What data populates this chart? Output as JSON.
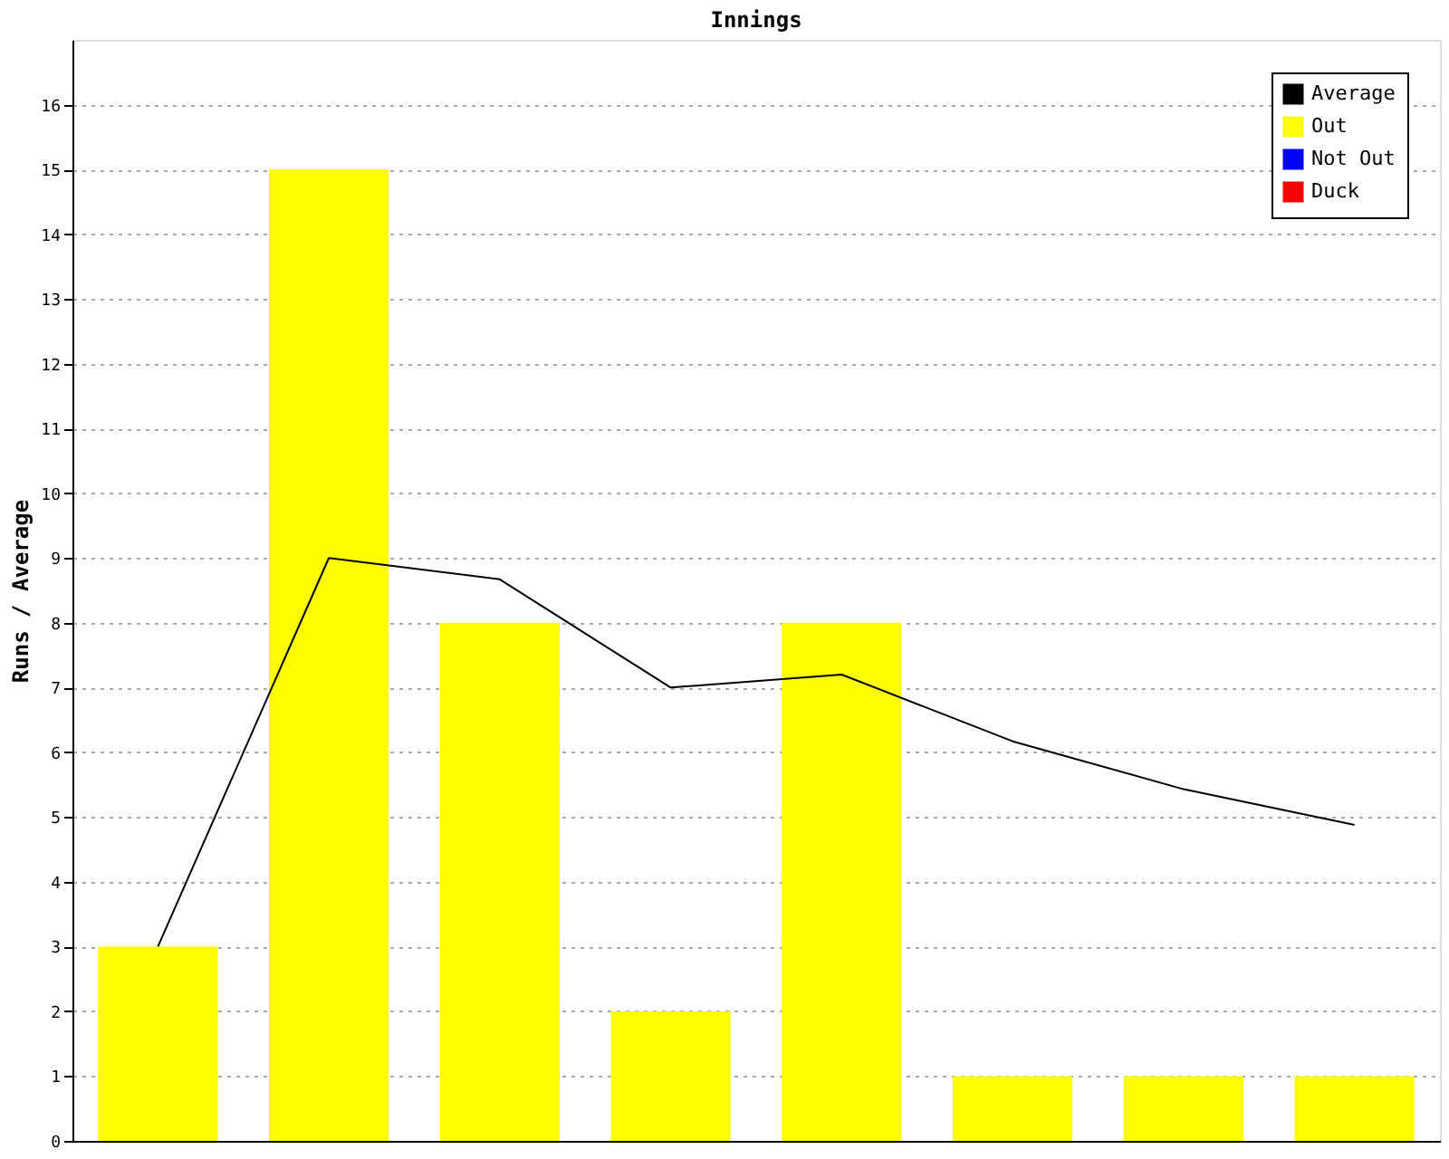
{
  "chart_data": {
    "type": "bar",
    "title": "Innings",
    "ylabel": "Runs / Average",
    "categories": [
      null,
      null,
      null,
      null,
      null,
      null,
      null,
      null
    ],
    "series": [
      {
        "name": "Average",
        "color": "#000000",
        "type": "line",
        "values": [
          3,
          9,
          8.67,
          7,
          7.2,
          6.17,
          5.43,
          4.88
        ]
      },
      {
        "name": "Out",
        "color": "#ffff00",
        "values": [
          3,
          15,
          8,
          2,
          8,
          1,
          1,
          1
        ]
      },
      {
        "name": "Not Out",
        "color": "#0000ff",
        "values": [
          null,
          null,
          null,
          null,
          null,
          null,
          null,
          null
        ]
      },
      {
        "name": "Duck",
        "color": "#ff0000",
        "values": [
          null,
          null,
          null,
          null,
          null,
          null,
          null,
          null
        ]
      }
    ],
    "ylim": [
      0,
      17
    ],
    "yticks": [
      0,
      1,
      2,
      3,
      4,
      5,
      6,
      7,
      8,
      9,
      10,
      11,
      12,
      13,
      14,
      15,
      16
    ],
    "grid": "y",
    "legend": "top right",
    "tick_labels": "y",
    "marker": "none",
    "line_style": "solid"
  }
}
